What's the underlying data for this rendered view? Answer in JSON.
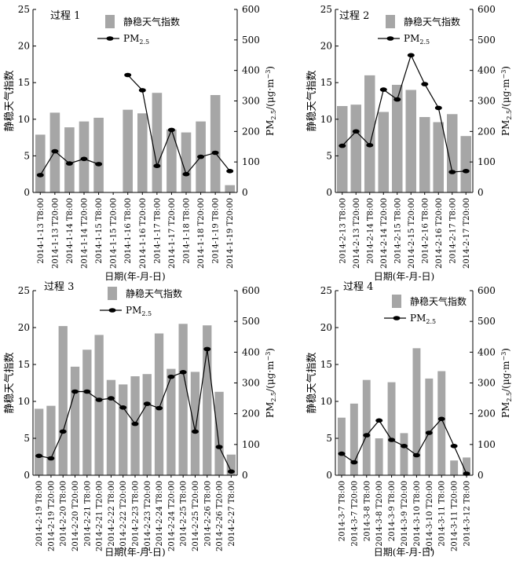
{
  "figure": {
    "legend_bar_label": "静稳天气指数",
    "legend_line_label_main": "PM",
    "legend_line_label_sub": "2.5",
    "y_left_label": "静稳天气指数",
    "y_right_label_prefix": "PM",
    "y_right_label_sub": "2.5",
    "y_right_label_suffix": "/(μg·m",
    "y_right_label_sup": "−3",
    "y_right_label_close": ")",
    "x_label": "日期(年-月-日)",
    "colors": {
      "bar": "#a6a6a6",
      "line": "#000000",
      "axis": "#000000"
    }
  },
  "chart_data": [
    {
      "type": "bar+line",
      "title": "过程 1",
      "ylim_left": [
        0,
        25
      ],
      "left_ticks": [
        "0",
        "5",
        "10",
        "15",
        "20",
        "25"
      ],
      "ylim_right": [
        0,
        600
      ],
      "right_ticks": [
        "0",
        "100",
        "200",
        "300",
        "400",
        "500",
        "600"
      ],
      "categories": [
        "2014-1-13 T8:00",
        "2014-1-13 T20:00",
        "2014-1-14 T8:00",
        "2014-1-14 T20:00",
        "2014-1-15 T8:00",
        "2014-1-15 T20:00",
        "2014-1-16 T8:00",
        "2014-1-16 T20:00",
        "2014-1-17 T8:00",
        "2014-1-17 T20:00",
        "2014-1-18 T8:00",
        "2014-1-18 T20:00",
        "2014-1-19 T8:00",
        "2014-1-19 T20:00"
      ],
      "series": [
        {
          "name": "静稳天气指数",
          "axis": "left",
          "values": [
            7.9,
            10.9,
            8.9,
            9.7,
            10.2,
            null,
            11.3,
            10.8,
            13.6,
            8.6,
            8.2,
            9.7,
            13.3,
            1.0
          ]
        },
        {
          "name": "PM2.5",
          "axis": "right",
          "values": [
            57,
            135,
            95,
            110,
            93,
            null,
            385,
            335,
            87,
            205,
            60,
            117,
            130,
            70
          ]
        }
      ]
    },
    {
      "type": "bar+line",
      "title": "过程 2",
      "ylim_left": [
        0,
        25
      ],
      "left_ticks": [
        "0",
        "5",
        "10",
        "15",
        "20",
        "25"
      ],
      "ylim_right": [
        0,
        600
      ],
      "right_ticks": [
        "0",
        "100",
        "200",
        "300",
        "400",
        "500",
        "600"
      ],
      "categories": [
        "2014-2-13 T8:00",
        "2014-2-13 T20:00",
        "2014-2-14 T8:00",
        "2014-2-14 T20:00",
        "2014-2-15 T8:00",
        "2014-2-15 T20:00",
        "2014-2-16 T8:00",
        "2014-2-16 T20:00",
        "2014-2-17 T8:00",
        "2014-2-17 T20:00"
      ],
      "series": [
        {
          "name": "静稳天气指数",
          "axis": "left",
          "values": [
            11.8,
            12.0,
            16.0,
            11.0,
            14.7,
            14.0,
            10.3,
            9.6,
            10.7,
            7.7
          ]
        },
        {
          "name": "PM2.5",
          "axis": "right",
          "values": [
            153,
            200,
            155,
            337,
            305,
            450,
            355,
            277,
            67,
            70
          ]
        }
      ]
    },
    {
      "type": "bar+line",
      "title": "过程 3",
      "ylim_left": [
        0,
        25
      ],
      "left_ticks": [
        "0",
        "5",
        "10",
        "15",
        "20",
        "25"
      ],
      "ylim_right": [
        0,
        600
      ],
      "right_ticks": [
        "0",
        "100",
        "200",
        "300",
        "400",
        "500",
        "600"
      ],
      "categories": [
        "2014-2-19 T8:00",
        "2014-2-19 T20:00",
        "2014-2-20 T8:00",
        "2014-2-20 T20:00",
        "2014-2-21 T8:00",
        "2014-2-21 T20:00",
        "2014-2-22 T8:00",
        "2014-2-22 T20:00",
        "2014-2-23 T8:00",
        "2014-2-23 T20:00",
        "2014-2-24 T8:00",
        "2014-2-24 T20:00",
        "2014-2-25 T8:00",
        "2014-2-25 T20:00",
        "2014-2-26 T8:00",
        "2014-2-26 T20:00",
        "2014-2-27 T8:00"
      ],
      "series": [
        {
          "name": "静稳天气指数",
          "axis": "left",
          "values": [
            9.0,
            9.4,
            20.2,
            14.7,
            17.0,
            19.0,
            12.9,
            12.3,
            13.4,
            13.7,
            19.2,
            14.4,
            20.5,
            14.0,
            20.3,
            11.3,
            2.8
          ]
        },
        {
          "name": "PM2.5",
          "axis": "right",
          "values": [
            63,
            55,
            142,
            272,
            272,
            245,
            250,
            220,
            167,
            232,
            218,
            320,
            335,
            142,
            410,
            92,
            12
          ]
        }
      ]
    },
    {
      "type": "bar+line",
      "title": "过程 4",
      "ylim_left": [
        0,
        25
      ],
      "left_ticks": [
        "0",
        "5",
        "10",
        "15",
        "20",
        "25"
      ],
      "ylim_right": [
        0,
        600
      ],
      "right_ticks": [
        "0",
        "100",
        "200",
        "300",
        "400",
        "500",
        "600"
      ],
      "categories": [
        "2014-3-7 T8:00",
        "2014-3-7 T20:00",
        "2014-3-8 T8:00",
        "2014-3-8 T20:00",
        "2014-3-9 T8:00",
        "2014-3-9 T20:00",
        "2014-3-10 T8:00",
        "2014-3-10 T20:00",
        "2014-3-11 T8:00",
        "2014-3-11 T20:00",
        "2014-3-12 T8:00"
      ],
      "series": [
        {
          "name": "静稳天气指数",
          "axis": "left",
          "values": [
            7.8,
            9.7,
            12.9,
            5.0,
            12.6,
            5.7,
            17.2,
            13.1,
            14.1,
            2.0,
            2.4
          ]
        },
        {
          "name": "PM2.5",
          "axis": "right",
          "values": [
            70,
            42,
            130,
            178,
            115,
            95,
            65,
            138,
            183,
            95,
            5
          ]
        }
      ]
    }
  ]
}
